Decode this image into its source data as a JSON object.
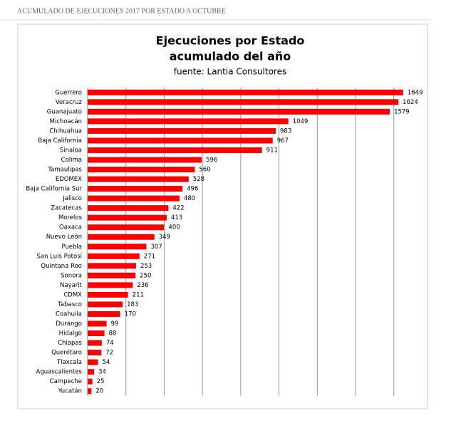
{
  "header": "ACUMULADO DE EJECUCIONES 2017 POR ESTADO A OCTUBRE",
  "chart_data": {
    "type": "bar",
    "orientation": "horizontal",
    "title": [
      "Ejecuciones por Estado",
      "acumulado del año"
    ],
    "subtitle": "fuente: Lantia Consultores",
    "categories": [
      "Guerrero",
      "Veracruz",
      "Guanajuato",
      "Michoacán",
      "Chihuahua",
      "Baja California",
      "Sinaloa",
      "Colima",
      "Tamaulipas",
      "EDOMEX",
      "Baja California Sur",
      "Jalisco",
      "Zacatecas",
      "Morelos",
      "Oaxaca",
      "Nuevo León",
      "Puebla",
      "San Luis Potosí",
      "Quintana Roo",
      "Sonora",
      "Nayarit",
      "CDMX",
      "Tabasco",
      "Coahuila",
      "Durango",
      "Hidalgo",
      "Chiapas",
      "Querétaro",
      "Tlaxcala",
      "Aguascalientes",
      "Campeche",
      "Yucatán"
    ],
    "values": [
      1649,
      1624,
      1579,
      1049,
      983,
      967,
      911,
      596,
      560,
      528,
      496,
      480,
      422,
      413,
      400,
      349,
      307,
      271,
      253,
      250,
      236,
      211,
      183,
      170,
      99,
      88,
      74,
      72,
      54,
      34,
      25,
      20
    ],
    "color": "#ff0000",
    "xlim": [
      0,
      1750
    ],
    "xticks": [
      0,
      200,
      400,
      600,
      800,
      1000,
      1200,
      1400,
      1600
    ],
    "grid": true
  }
}
